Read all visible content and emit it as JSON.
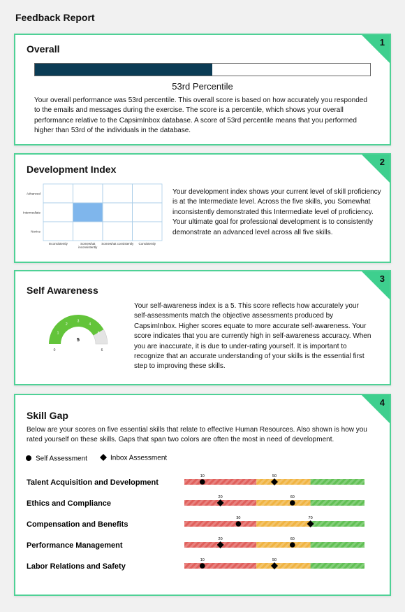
{
  "header": {
    "title": "Feedback Report"
  },
  "sections": [
    {
      "number": 1,
      "title": "Overall",
      "percentile": 53,
      "range": [
        0,
        100
      ],
      "percentile_label": "53rd Percentile",
      "bar_color": "#0b3c55",
      "text": "Your overall performance was 53rd percentile. This overall score is based on how accurately you responded to the emails and messages during the exercise. The score is a percentile, which shows your overall performance relative to the CapsimInbox database. A score of 53rd percentile means that you performed higher than 53rd of the individuals in the database."
    },
    {
      "number": 2,
      "title": "Development Index",
      "rows": [
        "Advanced",
        "Intermediate",
        "Novice"
      ],
      "columns": [
        "Inconsistently",
        "Somewhat inconsistently",
        "Somewhat consistently",
        "Consistently"
      ],
      "text": "Your development index shows your current level of skill proficiency is at the Intermediate level. Across the five skills, you Somewhat inconsistently demonstrated this Intermediate level of proficiency. Your ultimate goal for professional development is to consistently demonstrate an advanced level across all five skills."
    },
    {
      "number": 3,
      "title": "Self Awareness",
      "score": 5,
      "range": [
        0,
        6
      ],
      "ticks": [
        0,
        1,
        2,
        3,
        4,
        5,
        6
      ],
      "fill_color": "#63c43a",
      "rest_color": "#e4e4e4",
      "text": "Your self-awareness index is a 5. This score reflects how accurately your self-assessments match the objective assessments produced by CapsimInbox. Higher scores equate to more accurate self-awareness. Your score indicates that you are currently high in self-awareness accuracy. When you are inaccurate, it is due to under-rating yourself. It is important to recognize that an accurate understanding of your skills is the essential first step to improving these skills."
    },
    {
      "number": 4,
      "title": "Skill Gap",
      "text": "Below are your scores on five essential skills that relate to effective Human Resources. Also shown is how you rated yourself on these skills. Gaps that span two colors are often the most in need of development.",
      "legend": [
        "Self Assessment",
        "Inbox Assessment"
      ],
      "range": [
        0,
        100
      ],
      "bands": [
        {
          "from": 0,
          "to": 40,
          "color": "#e0605c"
        },
        {
          "from": 40,
          "to": 70,
          "color": "#f0b442"
        },
        {
          "from": 70,
          "to": 100,
          "color": "#62c055"
        }
      ],
      "skills": [
        {
          "name": "Talent Acquisition and Development",
          "self": 10,
          "inbox": 50
        },
        {
          "name": "Ethics and Compliance",
          "self": 60,
          "inbox": 20
        },
        {
          "name": "Compensation and Benefits",
          "self": 30,
          "inbox": 70
        },
        {
          "name": "Performance Management",
          "self": 60,
          "inbox": 20
        },
        {
          "name": "Labor Relations and Safety",
          "self": 10,
          "inbox": 50
        }
      ]
    }
  ]
}
